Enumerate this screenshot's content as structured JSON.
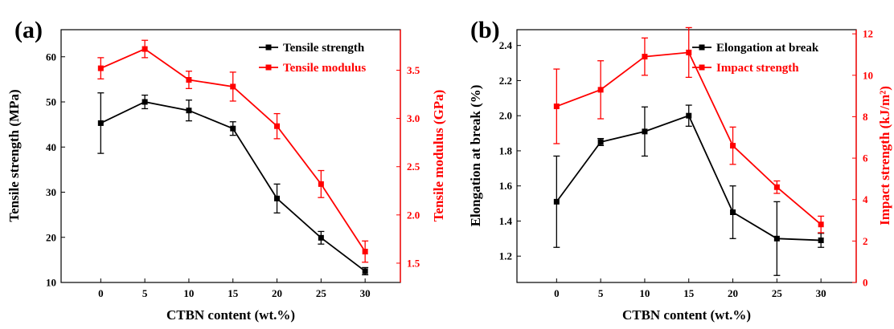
{
  "chart_data": [
    {
      "type": "line",
      "panel_label": "(a)",
      "xlabel": "CTBN content (wt.%)",
      "ylabel": "Tensile strength (MPa)",
      "y2label": "Tensile modulus (GPa)",
      "x": [
        0,
        5,
        10,
        15,
        20,
        25,
        30
      ],
      "x_ticks": [
        "0",
        "5",
        "10",
        "15",
        "20",
        "25",
        "30"
      ],
      "xlim": [
        -4.5,
        34
      ],
      "ylim": [
        10,
        66
      ],
      "y_ticks": [
        "10",
        "20",
        "30",
        "40",
        "50",
        "60"
      ],
      "y2lim": [
        1.3,
        3.92
      ],
      "y2_ticks": [
        "1.5",
        "2.0",
        "2.5",
        "3.0",
        "3.5"
      ],
      "legend_position": "top-right",
      "grid": false,
      "series": [
        {
          "name": "Tensile strength",
          "axis": "left",
          "color": "#000000",
          "values": [
            45.3,
            50.0,
            48.1,
            44.1,
            28.6,
            19.9,
            12.5
          ],
          "errors": [
            6.7,
            1.5,
            2.3,
            1.5,
            3.2,
            1.4,
            0.8
          ]
        },
        {
          "name": "Tensile modulus",
          "axis": "right",
          "color": "#ff0000",
          "values": [
            3.52,
            3.72,
            3.4,
            3.33,
            2.92,
            2.32,
            1.62
          ],
          "errors": [
            0.11,
            0.09,
            0.09,
            0.15,
            0.13,
            0.14,
            0.11
          ]
        }
      ]
    },
    {
      "type": "line",
      "panel_label": "(b)",
      "xlabel": "CTBN content (wt.%)",
      "ylabel": "Elongation at break (%)",
      "y2label": "Impact strength (kJ/m²)",
      "x": [
        0,
        5,
        10,
        15,
        20,
        25,
        30
      ],
      "x_ticks": [
        "0",
        "5",
        "10",
        "15",
        "20",
        "25",
        "30"
      ],
      "xlim": [
        -4.5,
        34
      ],
      "ylim": [
        1.05,
        2.49
      ],
      "y_ticks": [
        "1.2",
        "1.4",
        "1.6",
        "1.8",
        "2.0",
        "2.2",
        "2.4"
      ],
      "y2lim": [
        0,
        12.2
      ],
      "y2_ticks": [
        "0",
        "2",
        "4",
        "6",
        "8",
        "10",
        "12"
      ],
      "legend_position": "top-right",
      "grid": false,
      "series": [
        {
          "name": "Elongation at break",
          "axis": "left",
          "color": "#000000",
          "values": [
            1.51,
            1.85,
            1.91,
            2.0,
            1.45,
            1.3,
            1.29
          ],
          "errors": [
            0.26,
            0.02,
            0.14,
            0.06,
            0.15,
            0.21,
            0.04
          ]
        },
        {
          "name": "Impact strength",
          "axis": "right",
          "color": "#ff0000",
          "values": [
            8.5,
            9.3,
            10.9,
            11.1,
            6.6,
            4.6,
            2.8
          ],
          "errors": [
            1.8,
            1.4,
            0.9,
            1.2,
            0.9,
            0.3,
            0.4
          ]
        }
      ]
    }
  ]
}
